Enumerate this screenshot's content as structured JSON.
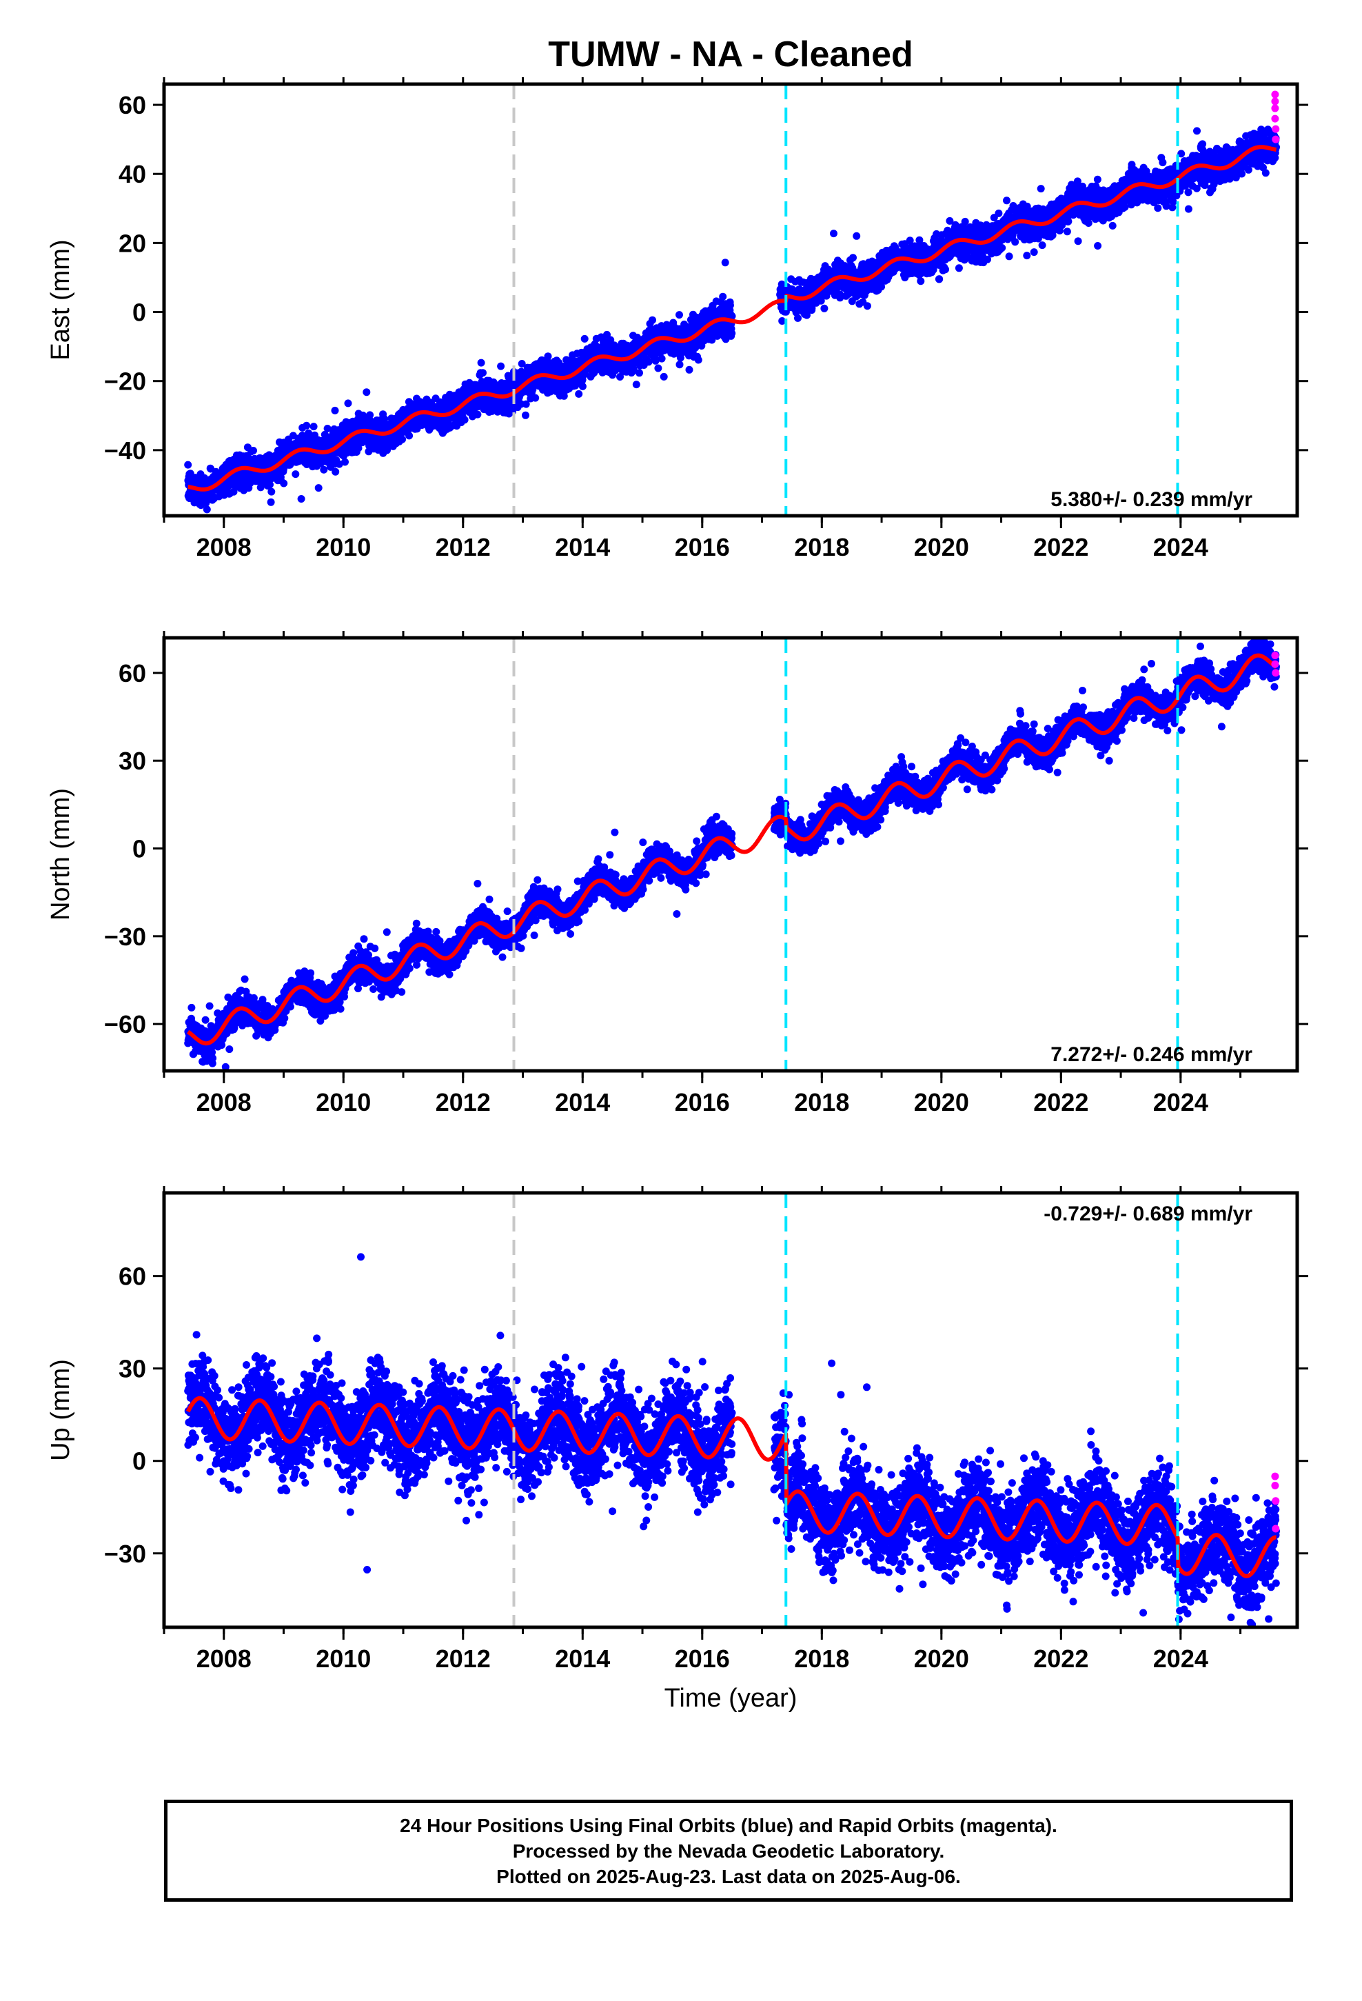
{
  "title": "TUMW  - NA - Cleaned",
  "colors": {
    "final_orbits": "#0000ff",
    "rapid_orbits": "#ff00ff",
    "model_fit": "#ff0000",
    "antenna_change_line": "#c8c8c8",
    "equipment_change_line": "#00e5ff"
  },
  "chart_data": [
    {
      "type": "scatter",
      "component": "East",
      "ylabel": "East (mm)",
      "xlabel": "",
      "xlim": [
        2007.0,
        2025.95
      ],
      "ylim": [
        -59,
        66
      ],
      "x_ticks": [
        2008,
        2010,
        2012,
        2014,
        2016,
        2018,
        2020,
        2022,
        2024
      ],
      "y_ticks": [
        -40,
        -20,
        0,
        20,
        40,
        60
      ],
      "y_tick_labels": [
        "−40",
        "−20",
        "0",
        "20",
        "40",
        "60"
      ],
      "rate_label": "5.380+/- 0.239 mm/yr",
      "rate_position": "bottom-right",
      "vertical_lines": [
        {
          "x": 2012.85,
          "color": "gray"
        },
        {
          "x": 2017.4,
          "color": "cyan"
        },
        {
          "x": 2023.95,
          "color": "cyan"
        }
      ],
      "trend": {
        "rate": 5.38,
        "intercept": -51.5,
        "t0": 2007.4,
        "noise": 2.3,
        "seasonal_amp": 1.5,
        "seasonal_phase": 0.0,
        "segments": [
          {
            "start": 2007.4,
            "end": 2017.4,
            "offset": 0
          },
          {
            "start": 2017.4,
            "end": 2025.6,
            "offset": 1.5
          }
        ],
        "gaps": [
          [
            2016.5,
            2017.3
          ]
        ]
      },
      "rapid_points": [
        {
          "x": 2025.58,
          "y": 63
        },
        {
          "x": 2025.58,
          "y": 61
        },
        {
          "x": 2025.58,
          "y": 59
        },
        {
          "x": 2025.58,
          "y": 56
        },
        {
          "x": 2025.59,
          "y": 53
        },
        {
          "x": 2025.59,
          "y": 50
        }
      ]
    },
    {
      "type": "scatter",
      "component": "North",
      "ylabel": "North (mm)",
      "xlabel": "",
      "xlim": [
        2007.0,
        2025.95
      ],
      "ylim": [
        -76,
        72
      ],
      "x_ticks": [
        2008,
        2010,
        2012,
        2014,
        2016,
        2018,
        2020,
        2022,
        2024
      ],
      "y_ticks": [
        -60,
        -30,
        0,
        30,
        60
      ],
      "y_tick_labels": [
        "−60",
        "−30",
        "0",
        "30",
        "60"
      ],
      "rate_label": "7.272+/- 0.246 mm/yr",
      "rate_position": "bottom-right",
      "vertical_lines": [
        {
          "x": 2012.85,
          "color": "gray"
        },
        {
          "x": 2017.4,
          "color": "cyan"
        },
        {
          "x": 2023.95,
          "color": "cyan"
        }
      ],
      "trend": {
        "rate": 7.272,
        "intercept": -65,
        "t0": 2007.4,
        "noise": 2.6,
        "seasonal_amp": 4.0,
        "seasonal_phase": 1.0,
        "segments": [
          {
            "start": 2007.4,
            "end": 2017.4,
            "offset": 0
          },
          {
            "start": 2017.4,
            "end": 2025.6,
            "offset": -3
          }
        ],
        "gaps": [
          [
            2016.5,
            2017.2
          ]
        ]
      },
      "rapid_points": [
        {
          "x": 2025.58,
          "y": 66
        },
        {
          "x": 2025.58,
          "y": 63
        },
        {
          "x": 2025.59,
          "y": 60
        }
      ]
    },
    {
      "type": "scatter",
      "component": "Up",
      "ylabel": "Up (mm)",
      "xlabel": "Time (year)",
      "xlim": [
        2007.0,
        2025.95
      ],
      "ylim": [
        -54,
        87
      ],
      "x_ticks": [
        2008,
        2010,
        2012,
        2014,
        2016,
        2018,
        2020,
        2022,
        2024
      ],
      "y_ticks": [
        -30,
        0,
        30,
        60
      ],
      "y_tick_labels": [
        "−30",
        "0",
        "30",
        "60"
      ],
      "rate_label": "-0.729+/- 0.689 mm/yr",
      "rate_position": "top-right",
      "vertical_lines": [
        {
          "x": 2012.85,
          "color": "gray"
        },
        {
          "x": 2017.4,
          "color": "cyan"
        },
        {
          "x": 2023.95,
          "color": "cyan"
        }
      ],
      "trend": {
        "rate": -0.729,
        "intercept": 14,
        "t0": 2007.4,
        "noise": 7,
        "seasonal_amp": 6.5,
        "seasonal_phase": 0.35,
        "segments": [
          {
            "start": 2007.4,
            "end": 2017.4,
            "offset": 0
          },
          {
            "start": 2017.4,
            "end": 2023.95,
            "offset": -23
          },
          {
            "start": 2023.95,
            "end": 2025.6,
            "offset": -32
          }
        ],
        "gaps": [
          [
            2016.5,
            2017.2
          ]
        ]
      },
      "rapid_points": [
        {
          "x": 2025.58,
          "y": -5
        },
        {
          "x": 2025.58,
          "y": -8
        },
        {
          "x": 2025.59,
          "y": -13
        },
        {
          "x": 2025.59,
          "y": -22
        }
      ]
    }
  ],
  "footer": {
    "line1": "24 Hour Positions Using Final Orbits (blue) and Rapid Orbits (magenta).",
    "line2": "Processed by the Nevada Geodetic Laboratory.",
    "line3": "Plotted on 2025-Aug-23. Last data on 2025-Aug-06."
  }
}
